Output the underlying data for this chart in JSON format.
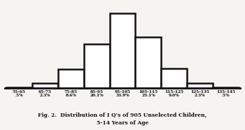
{
  "ranges": [
    "55-65",
    "65-75",
    "75-85",
    "85-95",
    "95-105",
    "105-115",
    "115-125",
    "125-135",
    "135-145"
  ],
  "percentages": [
    ".5%",
    "2.3%",
    "8.6%",
    "20.1%",
    "33.9%",
    "23.1%",
    "9.0%",
    "2.3%",
    ".5%"
  ],
  "values": [
    0.5,
    2.3,
    8.6,
    20.1,
    33.9,
    23.1,
    9.0,
    2.3,
    0.5
  ],
  "bar_color": "#ffffff",
  "bar_edge_color": "#111111",
  "background_color": "#f5f4f0",
  "caption_line1": "Fig. 2.  Distribution of I Q's of 905 Unselected Children,",
  "caption_line2": "5-14 Years of Age",
  "caption_fontsize": 5.5,
  "tick_fontsize": 4.2,
  "bar_linewidth": 1.8,
  "ylim_max": 38
}
